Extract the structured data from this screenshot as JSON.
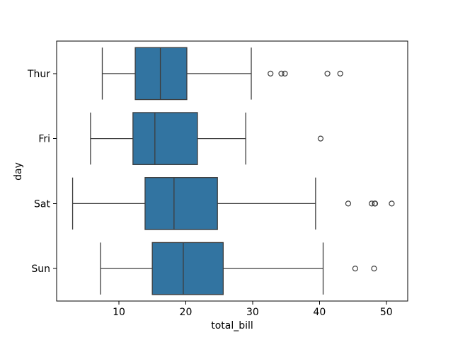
{
  "chart_data": {
    "type": "boxplot",
    "orientation": "horizontal",
    "title": "",
    "xlabel": "total_bill",
    "ylabel": "day",
    "categories": [
      "Thur",
      "Fri",
      "Sat",
      "Sun"
    ],
    "xlim": [
      0.68,
      53.2
    ],
    "xticks": [
      10,
      20,
      30,
      40,
      50
    ],
    "grid": false,
    "legend": null,
    "series": [
      {
        "category": "Thur",
        "whisker_low": 7.51,
        "q1": 12.44,
        "median": 16.2,
        "q3": 20.16,
        "whisker_high": 29.8,
        "outliers": [
          32.68,
          34.3,
          34.83,
          41.19,
          43.11
        ]
      },
      {
        "category": "Fri",
        "whisker_low": 5.75,
        "q1": 12.1,
        "median": 15.38,
        "q3": 21.75,
        "whisker_high": 28.97,
        "outliers": [
          40.17
        ]
      },
      {
        "category": "Sat",
        "whisker_low": 3.07,
        "q1": 13.91,
        "median": 18.24,
        "q3": 24.74,
        "whisker_high": 39.42,
        "outliers": [
          44.3,
          47.81,
          48.27,
          48.33,
          50.81
        ]
      },
      {
        "category": "Sun",
        "whisker_low": 7.25,
        "q1": 14.99,
        "median": 19.63,
        "q3": 25.6,
        "whisker_high": 40.55,
        "outliers": [
          45.35,
          48.17
        ]
      }
    ],
    "colors": {
      "box_fill": "#3274a1",
      "line": "#3d3d3d",
      "axis": "#000000",
      "text": "#000000",
      "background": "#ffffff"
    }
  }
}
